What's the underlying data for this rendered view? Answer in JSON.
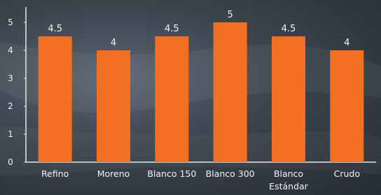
{
  "chart_data": {
    "type": "bar",
    "categories": [
      "Refino",
      "Moreno",
      "Blanco 150",
      "Blanco 300",
      "Blanco Estándar",
      "Crudo"
    ],
    "values": [
      4.5,
      4,
      4.5,
      5,
      4.5,
      4
    ],
    "color": "#f36f21",
    "ylim": [
      0,
      5.5
    ],
    "yticks": [
      0,
      1,
      2,
      3,
      4,
      5
    ],
    "grid": false
  }
}
